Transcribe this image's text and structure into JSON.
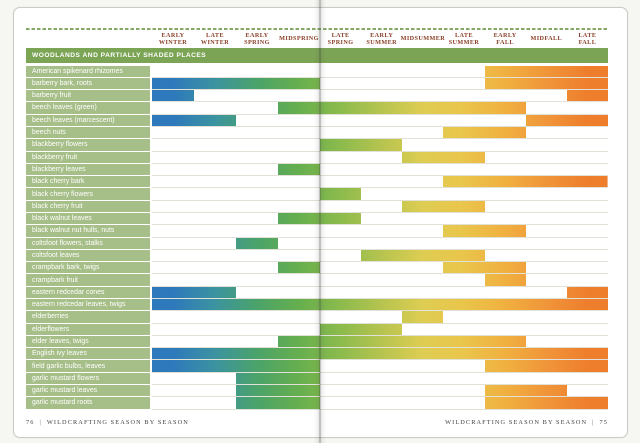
{
  "footers": {
    "left": {
      "page_number": "76",
      "separator": "|",
      "title": "Wildcrafting Season by Season"
    },
    "right": {
      "title": "Wildcrafting Season by Season",
      "separator": "|",
      "page_number": "75"
    }
  },
  "chart_data": {
    "type": "gantt-seasonal",
    "title": "Wildcrafting Season by Season",
    "section": "Woodlands and Partially Shaded Places",
    "seasons": [
      "Early Winter",
      "Late Winter",
      "Early Spring",
      "Midspring",
      "Late Spring",
      "Early Summer",
      "Midsummer",
      "Late Summer",
      "Early Fall",
      "Midfall",
      "Late Fall"
    ],
    "legend_note": "bars span the seasons when each plant part is harvested; bar color follows season (winter=blue, spring=green, summer=yellow, fall=orange)",
    "rows": [
      {
        "label": "American spikenard rhizomes",
        "spans": [
          [
            8,
            10
          ]
        ]
      },
      {
        "label": "barberry bark, roots",
        "spans": [
          [
            0,
            3
          ],
          [
            8,
            10
          ]
        ]
      },
      {
        "label": "barberry fruit",
        "spans": [
          [
            0,
            0
          ],
          [
            10,
            10
          ]
        ]
      },
      {
        "label": "beech leaves (green)",
        "spans": [
          [
            3,
            8
          ]
        ]
      },
      {
        "label": "beech leaves (marcescent)",
        "spans": [
          [
            0,
            1
          ],
          [
            9,
            10
          ]
        ]
      },
      {
        "label": "beech nuts",
        "spans": [
          [
            7,
            8
          ]
        ]
      },
      {
        "label": "blackberry flowers",
        "spans": [
          [
            4,
            5
          ]
        ]
      },
      {
        "label": "blackberry fruit",
        "spans": [
          [
            6,
            7
          ]
        ]
      },
      {
        "label": "blackberry leaves",
        "spans": [
          [
            3,
            3
          ]
        ]
      },
      {
        "label": "black cherry bark",
        "spans": [
          [
            7,
            10
          ]
        ]
      },
      {
        "label": "black cherry flowers",
        "spans": [
          [
            4,
            4
          ]
        ]
      },
      {
        "label": "black cherry fruit",
        "spans": [
          [
            6,
            7
          ]
        ]
      },
      {
        "label": "black walnut leaves",
        "spans": [
          [
            3,
            4
          ]
        ]
      },
      {
        "label": "black walnut nut hulls, nuts",
        "spans": [
          [
            7,
            8
          ]
        ]
      },
      {
        "label": "coltsfoot flowers, stalks",
        "spans": [
          [
            2,
            2
          ]
        ]
      },
      {
        "label": "coltsfoot leaves",
        "spans": [
          [
            5,
            7
          ]
        ]
      },
      {
        "label": "crampbark bark, twigs",
        "spans": [
          [
            3,
            3
          ],
          [
            7,
            8
          ]
        ]
      },
      {
        "label": "crampbark fruit",
        "spans": [
          [
            8,
            8
          ]
        ]
      },
      {
        "label": "eastern redcedar cones",
        "spans": [
          [
            0,
            1
          ],
          [
            10,
            10
          ]
        ]
      },
      {
        "label": "eastern redcedar leaves, twigs",
        "spans": [
          [
            0,
            10
          ]
        ]
      },
      {
        "label": "elderberries",
        "spans": [
          [
            6,
            6
          ]
        ]
      },
      {
        "label": "elderflowers",
        "spans": [
          [
            4,
            5
          ]
        ]
      },
      {
        "label": "elder leaves, twigs",
        "spans": [
          [
            3,
            8
          ]
        ]
      },
      {
        "label": "English ivy leaves",
        "spans": [
          [
            0,
            10
          ]
        ]
      },
      {
        "label": "field garlic bulbs, leaves",
        "spans": [
          [
            0,
            3
          ],
          [
            8,
            10
          ]
        ]
      },
      {
        "label": "garlic mustard flowers",
        "spans": [
          [
            2,
            3
          ]
        ]
      },
      {
        "label": "garlic mustard leaves",
        "spans": [
          [
            2,
            3
          ],
          [
            8,
            9
          ]
        ]
      },
      {
        "label": "garlic mustard roots",
        "spans": [
          [
            2,
            3
          ],
          [
            8,
            10
          ]
        ]
      }
    ],
    "colors": {
      "gradient_stops": [
        "#2e79bc",
        "#3b93a0",
        "#4ba36a",
        "#66af4e",
        "#8cbb4d",
        "#b6c44f",
        "#decd52",
        "#eac54b",
        "#f0b03f",
        "#f0953a",
        "#ee7e2c"
      ],
      "label_cell": "#a6be87",
      "section_bar": "#7ba455",
      "season_header_text": "#8a4028",
      "dash": "#84a964",
      "footer_text": "#3f3f3b",
      "hairline": "#e2e1d8",
      "page_border": "#cbcac4"
    }
  }
}
